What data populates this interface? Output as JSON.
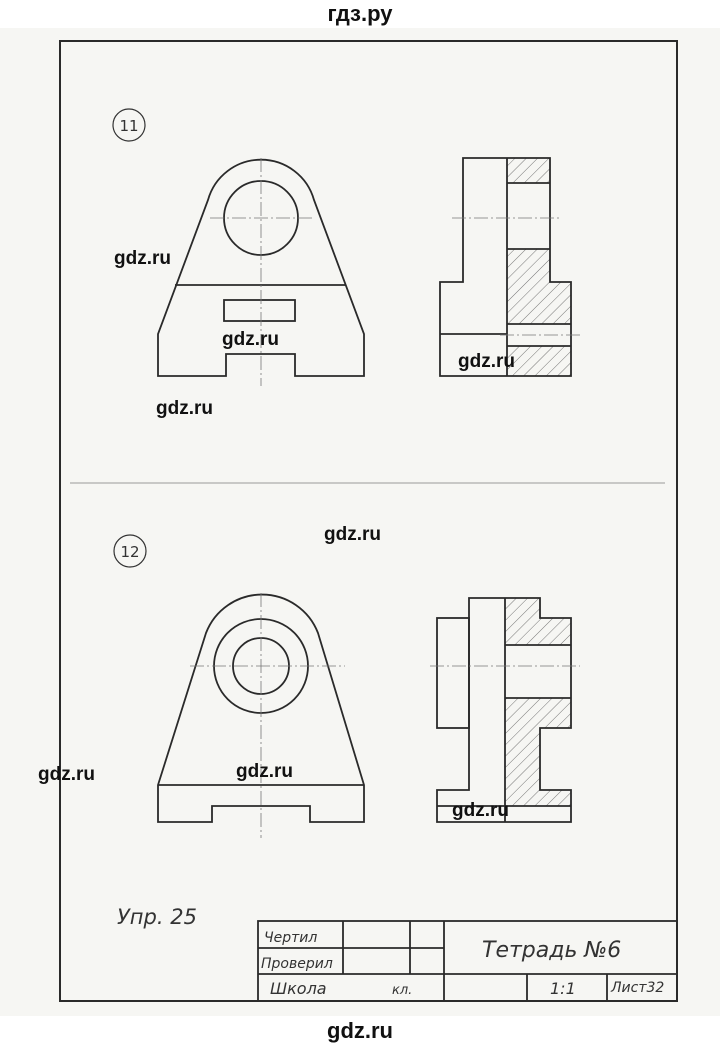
{
  "site": {
    "header": "гдз.ру",
    "footer": "gdz.ru"
  },
  "watermarks": [
    "gdz.ru",
    "gdz.ru",
    "gdz.ru",
    "gdz.ru",
    "gdz.ru",
    "gdz.ru",
    "gdz.ru",
    "gdz.ru"
  ],
  "figures": [
    {
      "number": "11"
    },
    {
      "number": "12"
    }
  ],
  "exercise_label": "Упр. 25",
  "title_block": {
    "drew_label": "Чертил",
    "checked_label": "Проверил",
    "school_label": "Школа",
    "class_label": "кл.",
    "title": "Тетрадь №6",
    "scale": "1:1",
    "sheet": "Лист32"
  },
  "colors": {
    "line": "#2a2a2a",
    "thin": "#7a7a7a",
    "paper": "#f6f6f3"
  }
}
